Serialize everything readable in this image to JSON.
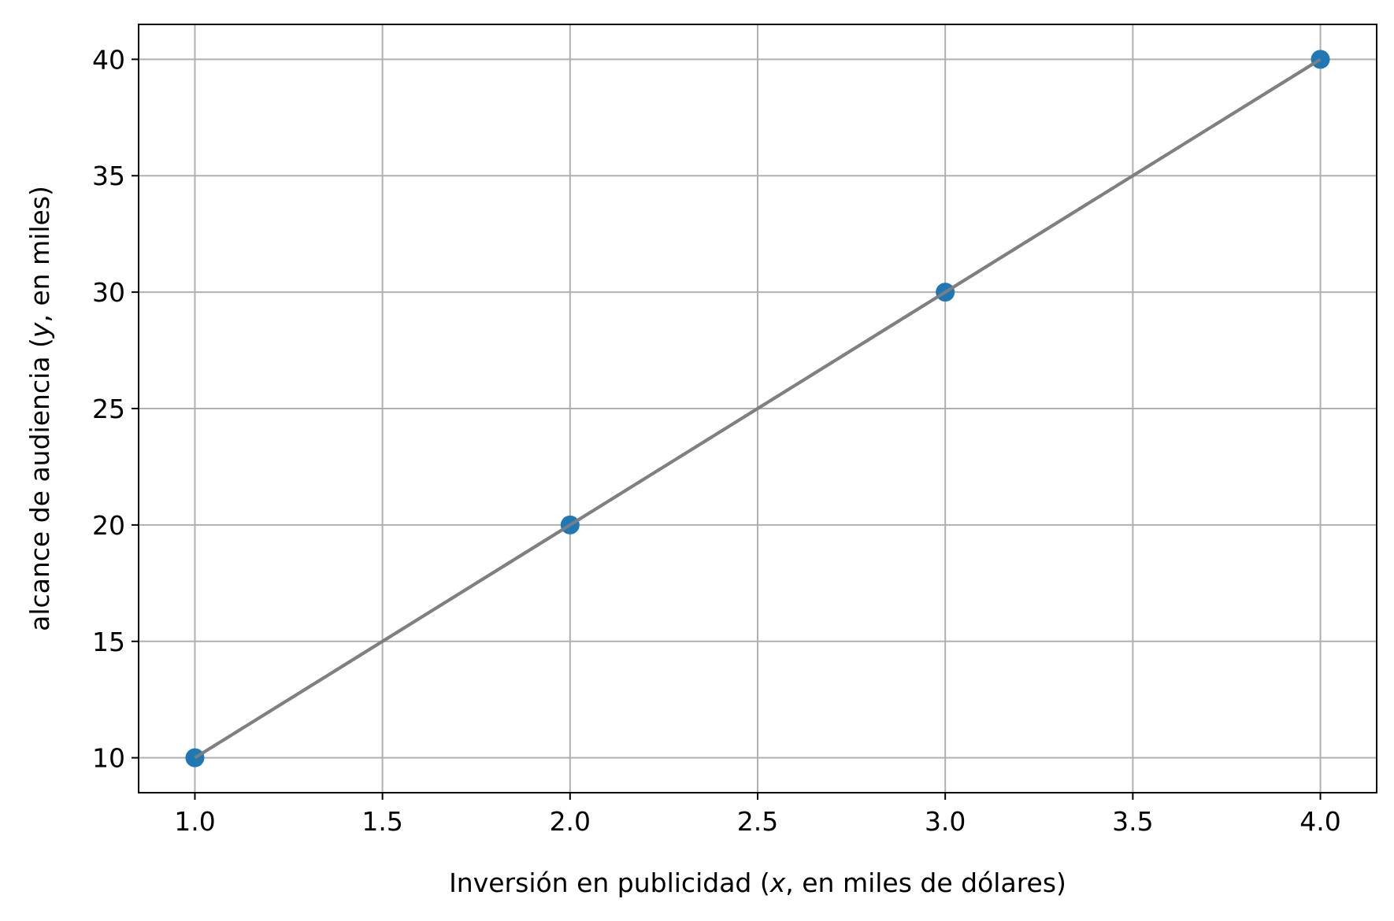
{
  "chart_data": {
    "type": "line",
    "xlabel": "Inversión en publicidad (x, en miles de dólares)",
    "xlabel_parts": {
      "before": "Inversión en publicidad (",
      "var": "x",
      "after": ", en miles de dólares)"
    },
    "ylabel": "alcance de audiencia (y, en miles)",
    "ylabel_parts": {
      "before": "alcance de audiencia (",
      "var": "y",
      "after": ", en miles)"
    },
    "xlim": [
      0.85,
      4.15
    ],
    "ylim": [
      8.5,
      41.5
    ],
    "x_ticks": [
      1.0,
      1.5,
      2.0,
      2.5,
      3.0,
      3.5,
      4.0
    ],
    "x_tick_labels": [
      "1.0",
      "1.5",
      "2.0",
      "2.5",
      "3.0",
      "3.5",
      "4.0"
    ],
    "y_ticks": [
      10,
      15,
      20,
      25,
      30,
      35,
      40
    ],
    "y_tick_labels": [
      "10",
      "15",
      "20",
      "25",
      "30",
      "35",
      "40"
    ],
    "grid": true,
    "series": [
      {
        "style": "markers-with-dashed-line",
        "color": "#1f77b4",
        "x": [
          1.0,
          2.0,
          3.0,
          4.0
        ],
        "y": [
          10,
          20,
          30,
          40
        ]
      },
      {
        "style": "solid-line",
        "color": "#808080",
        "x": [
          1.0,
          2.0,
          3.0,
          4.0
        ],
        "y": [
          10,
          20,
          30,
          40
        ]
      }
    ],
    "colors": {
      "grid": "#b0b0b0",
      "axes": "#000000"
    }
  }
}
